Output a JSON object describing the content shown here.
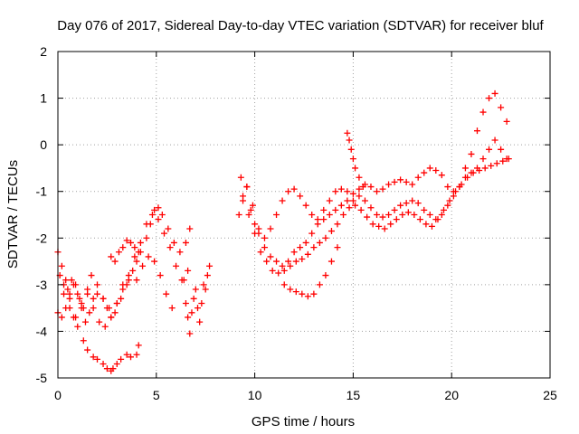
{
  "chart_data": {
    "type": "scatter",
    "title": "Day 076 of 2017, Sidereal Day-to-day VTEC variation (SDTVAR) for receiver bluf",
    "xlabel": "GPS time / hours",
    "ylabel": "SDTVAR / TECUs",
    "xlim": [
      0,
      25
    ],
    "ylim": [
      -5,
      2
    ],
    "xticks": [
      "0",
      "5",
      "10",
      "15",
      "20",
      "25"
    ],
    "yticks": [
      "-5",
      "-4",
      "-3",
      "-2",
      "-1",
      "0",
      "1",
      "2"
    ],
    "grid": true,
    "marker": "+",
    "marker_color": "#ff0000",
    "series": [
      {
        "x": [
          0.0,
          0.2,
          0.4,
          0.6,
          0.8,
          1.0,
          1.3,
          1.5,
          1.8,
          2.0,
          2.3,
          2.5,
          2.7,
          2.8,
          3.0,
          3.2,
          3.5,
          3.7,
          4.0,
          4.1
        ],
        "y": [
          -2.3,
          -2.6,
          -2.9,
          -3.3,
          -3.7,
          -3.9,
          -4.2,
          -4.4,
          -4.55,
          -4.6,
          -4.7,
          -4.8,
          -4.85,
          -4.8,
          -4.7,
          -4.6,
          -4.5,
          -4.55,
          -4.5,
          -4.3
        ]
      },
      {
        "x": [
          0.0,
          0.2,
          0.4,
          0.6,
          0.8,
          1.0,
          1.2,
          1.4,
          1.6,
          1.8,
          2.0,
          2.3,
          2.6,
          2.9,
          3.2,
          3.5,
          3.8,
          4.0,
          4.2,
          4.5,
          4.7,
          4.9,
          5.1,
          5.3,
          5.6,
          5.9,
          6.2,
          6.5,
          6.7
        ],
        "y": [
          -3.6,
          -3.7,
          -3.5,
          -3.2,
          -3.0,
          -3.2,
          -3.5,
          -3.8,
          -3.6,
          -3.3,
          -3.2,
          -3.3,
          -3.5,
          -3.6,
          -3.3,
          -3.0,
          -2.7,
          -2.5,
          -2.3,
          -2.0,
          -1.7,
          -1.4,
          -1.35,
          -1.5,
          -1.8,
          -2.1,
          -2.3,
          -2.1,
          -1.8
        ]
      },
      {
        "x": [
          0.1,
          0.3,
          0.5,
          0.7,
          0.9,
          1.1,
          1.3,
          1.5,
          1.7,
          2.0,
          2.3,
          2.5,
          2.7,
          3.0,
          3.3,
          3.6,
          3.9,
          4.2,
          4.5,
          4.8,
          5.1,
          5.4,
          5.7,
          6.0,
          6.3,
          6.6
        ],
        "y": [
          -2.8,
          -3.0,
          -3.1,
          -2.9,
          -3.0,
          -3.3,
          -3.5,
          -3.2,
          -2.8,
          -3.0,
          -3.3,
          -3.5,
          -3.7,
          -3.4,
          -3.0,
          -2.8,
          -2.4,
          -2.1,
          -1.7,
          -1.5,
          -1.6,
          -1.9,
          -2.2,
          -2.6,
          -2.9,
          -2.7
        ]
      },
      {
        "x": [
          0.3,
          0.6,
          0.9,
          1.2,
          1.5,
          1.8,
          2.1,
          2.4,
          2.7,
          3.0,
          3.3,
          3.6,
          4.0,
          4.3,
          4.6,
          4.9,
          5.2,
          5.5,
          5.8
        ],
        "y": [
          -3.2,
          -3.5,
          -3.7,
          -3.4,
          -3.1,
          -3.5,
          -3.8,
          -3.9,
          -3.7,
          -3.4,
          -3.1,
          -2.9,
          -2.9,
          -2.6,
          -2.4,
          -2.5,
          -2.8,
          -3.2,
          -3.5
        ]
      },
      {
        "x": [
          2.7,
          2.9,
          3.1,
          3.3,
          3.5,
          3.7,
          3.9,
          4.1
        ],
        "y": [
          -2.4,
          -2.5,
          -2.3,
          -2.2,
          -2.05,
          -2.1,
          -2.2,
          -2.3
        ]
      },
      {
        "x": [
          6.4,
          6.5,
          6.6,
          6.7,
          6.8,
          6.9,
          7.0,
          7.1,
          7.2,
          7.3,
          7.4,
          7.5,
          7.6,
          7.7
        ],
        "y": [
          -2.9,
          -3.4,
          -3.7,
          -4.05,
          -3.6,
          -3.3,
          -3.1,
          -3.5,
          -3.8,
          -3.4,
          -3.0,
          -3.1,
          -2.8,
          -2.6
        ]
      },
      {
        "x": [
          9.2,
          9.4,
          9.6,
          9.8,
          10.0,
          10.2,
          10.5,
          10.8,
          11.1,
          11.4,
          11.7,
          12.0,
          12.3,
          12.6,
          12.9,
          13.2,
          13.5,
          13.8,
          14.1,
          14.4,
          14.7,
          15.0,
          15.3,
          15.6,
          15.9,
          16.2,
          16.5,
          16.8,
          17.1,
          17.4,
          17.7,
          18.0,
          18.3,
          18.6,
          18.9,
          19.2,
          19.5,
          19.8,
          20.1,
          20.4,
          20.7,
          21.0,
          21.3,
          21.6,
          21.9,
          22.2,
          22.5,
          22.8
        ],
        "y": [
          -1.5,
          -1.1,
          -0.9,
          -1.4,
          -1.7,
          -1.9,
          -2.0,
          -1.8,
          -1.5,
          -1.2,
          -1.0,
          -0.95,
          -1.1,
          -1.3,
          -1.5,
          -1.6,
          -1.4,
          -1.2,
          -1.0,
          -0.95,
          -1.0,
          -1.05,
          -0.95,
          -0.85,
          -0.9,
          -1.0,
          -0.95,
          -0.85,
          -0.8,
          -0.75,
          -0.8,
          -0.85,
          -0.7,
          -0.6,
          -0.5,
          -0.55,
          -0.65,
          -0.9,
          -1.0,
          -0.9,
          -0.5,
          -0.2,
          0.3,
          0.7,
          1.0,
          1.1,
          0.8,
          0.5
        ]
      },
      {
        "x": [
          9.3,
          9.6,
          9.9,
          10.2,
          10.5,
          10.8,
          11.1,
          11.4,
          11.7,
          12.0,
          12.3,
          12.6,
          12.9,
          13.2,
          13.5,
          13.8,
          14.1,
          14.4,
          14.7,
          15.0,
          15.3,
          15.6,
          15.9,
          16.2,
          16.5,
          16.8,
          17.1,
          17.4,
          17.7,
          18.0,
          18.3,
          18.6,
          18.9,
          19.2,
          19.5,
          19.8,
          20.1,
          20.4,
          20.7,
          21.0,
          21.3,
          21.6,
          21.9,
          22.2,
          22.5,
          22.8
        ],
        "y": [
          -0.7,
          -0.9,
          -1.3,
          -1.8,
          -2.2,
          -2.4,
          -2.5,
          -2.6,
          -2.5,
          -2.3,
          -2.2,
          -2.1,
          -1.9,
          -1.7,
          -1.6,
          -1.5,
          -1.4,
          -1.3,
          -1.2,
          -1.2,
          -1.1,
          -1.2,
          -1.35,
          -1.5,
          -1.55,
          -1.5,
          -1.4,
          -1.3,
          -1.25,
          -1.2,
          -1.25,
          -1.4,
          -1.5,
          -1.6,
          -1.5,
          -1.3,
          -1.1,
          -0.9,
          -0.7,
          -0.6,
          -0.5,
          -0.3,
          -0.1,
          0.1,
          -0.1,
          -0.3
        ]
      },
      {
        "x": [
          9.4,
          9.7,
          10.0,
          10.3,
          10.6,
          10.9,
          11.2,
          11.5,
          11.8,
          12.1,
          12.4,
          12.7,
          13.0,
          13.3,
          13.6,
          13.9,
          14.2,
          14.5,
          14.8,
          15.1,
          15.4,
          15.7,
          16.0,
          16.3,
          16.6,
          16.9,
          17.2,
          17.5,
          17.8,
          18.1,
          18.4,
          18.7,
          19.0,
          19.3,
          19.6,
          19.9,
          20.2,
          20.5,
          20.8,
          21.1,
          21.4,
          21.7,
          22.0,
          22.3,
          22.6,
          22.9
        ],
        "y": [
          -1.2,
          -1.5,
          -1.9,
          -2.3,
          -2.5,
          -2.7,
          -2.75,
          -2.7,
          -2.6,
          -2.5,
          -2.45,
          -2.35,
          -2.2,
          -2.1,
          -2.0,
          -1.85,
          -1.7,
          -1.5,
          -1.35,
          -1.3,
          -1.4,
          -1.55,
          -1.7,
          -1.75,
          -1.8,
          -1.7,
          -1.6,
          -1.5,
          -1.45,
          -1.5,
          -1.6,
          -1.7,
          -1.75,
          -1.6,
          -1.4,
          -1.2,
          -1.0,
          -0.85,
          -0.7,
          -0.6,
          -0.55,
          -0.5,
          -0.45,
          -0.4,
          -0.35,
          -0.3
        ]
      },
      {
        "x": [
          11.5,
          11.8,
          12.1,
          12.4,
          12.7,
          13.0,
          13.3,
          13.6,
          13.9,
          14.2
        ],
        "y": [
          -3.0,
          -3.1,
          -3.15,
          -3.2,
          -3.25,
          -3.2,
          -3.0,
          -2.8,
          -2.5,
          -2.2
        ]
      },
      {
        "x": [
          14.7,
          14.8,
          14.9,
          15.0,
          15.1,
          15.3,
          15.5
        ],
        "y": [
          0.25,
          0.1,
          -0.1,
          -0.3,
          -0.5,
          -0.7,
          -0.9
        ]
      }
    ]
  }
}
